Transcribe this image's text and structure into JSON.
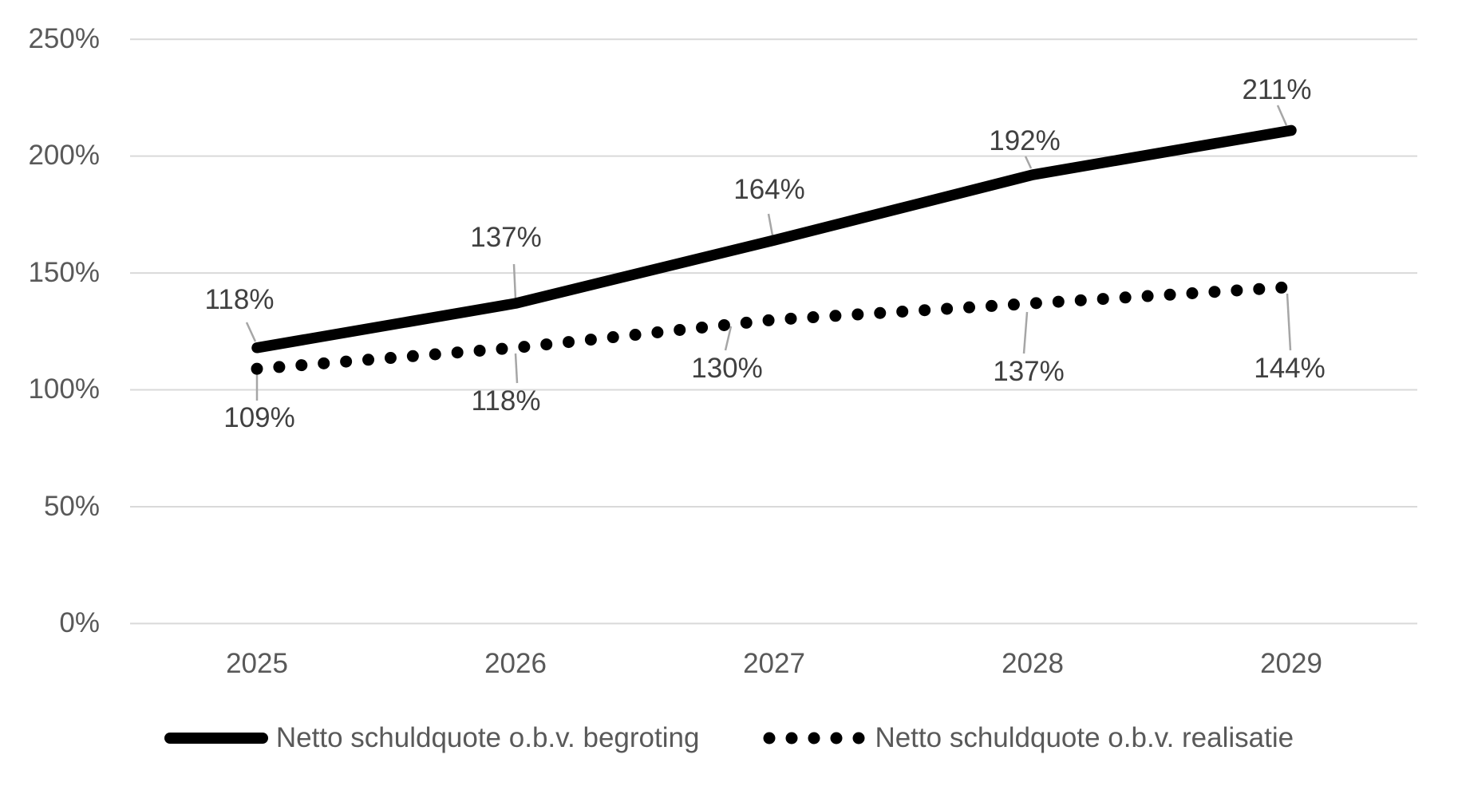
{
  "chart_data": {
    "type": "line",
    "title": "",
    "xlabel": "",
    "ylabel": "",
    "categories": [
      "2025",
      "2026",
      "2027",
      "2028",
      "2029"
    ],
    "series": [
      {
        "name": "Netto schuldquote o.b.v. begroting",
        "line_style": "solid",
        "values": [
          118,
          137,
          164,
          192,
          211
        ],
        "labels": [
          "118%",
          "137%",
          "164%",
          "192%",
          "211%"
        ]
      },
      {
        "name": "Netto schuldquote o.b.v. realisatie",
        "line_style": "dotted",
        "values": [
          109,
          118,
          130,
          137,
          144
        ],
        "labels": [
          "109%",
          "118%",
          "130%",
          "137%",
          "144%"
        ]
      }
    ],
    "ylim": [
      0,
      250
    ],
    "yticks": [
      {
        "label": "250%",
        "value": 250
      },
      {
        "label": "200%",
        "value": 200
      },
      {
        "label": "150%",
        "value": 150
      },
      {
        "label": "100%",
        "value": 100
      },
      {
        "label": "50%",
        "value": 50
      },
      {
        "label": "0%",
        "value": 0
      }
    ],
    "grid": "horizontal",
    "legend_position": "bottom"
  },
  "colors": {
    "series_line": "#000000",
    "gridline": "#D9D9D9",
    "axis_text": "#595959",
    "data_label_text": "#404040",
    "leader_line": "#A6A6A6",
    "background": "#FFFFFF"
  }
}
